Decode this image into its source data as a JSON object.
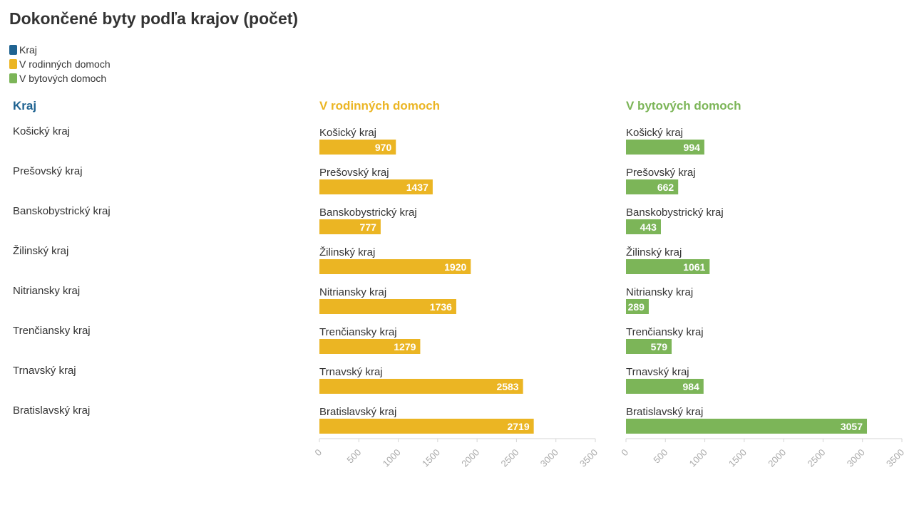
{
  "title": "Dokončené byty podľa krajov (počet)",
  "colors": {
    "kraj": "#1f6391",
    "rodinne": "#ebb523",
    "bytove": "#7cb558"
  },
  "legend": [
    {
      "label": "Kraj",
      "color": "#1f6391"
    },
    {
      "label": "V rodinných domoch",
      "color": "#ebb523"
    },
    {
      "label": "V bytových domoch",
      "color": "#7cb558"
    }
  ],
  "headers": {
    "kraj": "Kraj",
    "rodinne": "V rodinných domoch",
    "bytove": "V bytových domoch"
  },
  "chart_data": {
    "type": "bar",
    "orientation": "horizontal",
    "title": "Dokončené byty podľa krajov (počet)",
    "categories": [
      "Košický kraj",
      "Prešovský kraj",
      "Banskobystrický kraj",
      "Žilinský kraj",
      "Nitriansky kraj",
      "Trenčiansky kraj",
      "Trnavský kraj",
      "Bratislavský kraj"
    ],
    "series": [
      {
        "name": "V rodinných domoch",
        "values": [
          970,
          1437,
          777,
          1920,
          1736,
          1279,
          2583,
          2719
        ]
      },
      {
        "name": "V bytových domoch",
        "values": [
          994,
          662,
          443,
          1061,
          289,
          579,
          984,
          3057
        ]
      }
    ],
    "xlim": [
      0,
      3500
    ],
    "xticks": [
      0,
      500,
      1000,
      1500,
      2000,
      2500,
      3000,
      3500
    ],
    "legend_position": "top-left",
    "grid": false
  }
}
